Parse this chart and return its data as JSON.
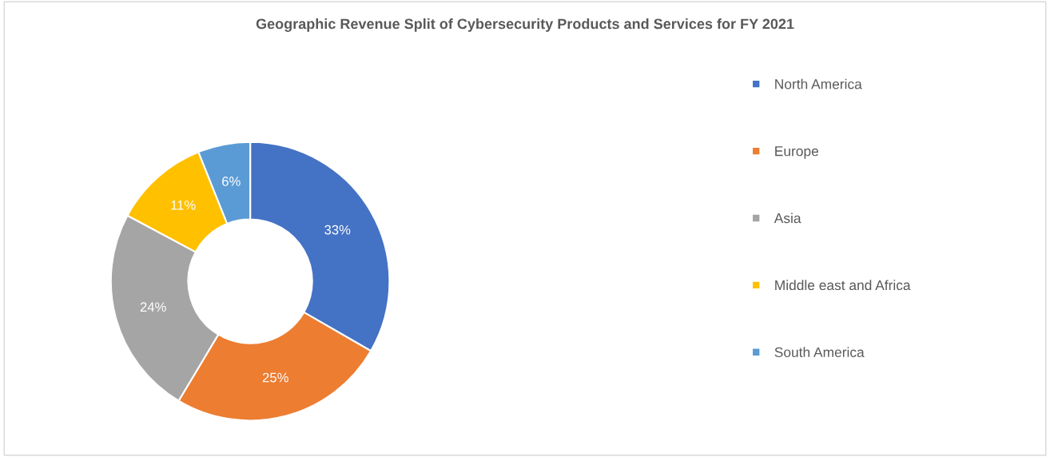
{
  "chart_data": {
    "type": "donut",
    "title": "Geographic Revenue Split of Cybersecurity Products and Services for FY 2021",
    "categories": [
      "North America",
      "Europe",
      "Asia",
      "Middle east and Africa",
      "South America"
    ],
    "values": [
      33,
      25,
      24,
      11,
      6
    ],
    "colors": [
      "#4472c4",
      "#ed7d31",
      "#a5a5a5",
      "#ffc000",
      "#5b9bd5"
    ],
    "value_labels": [
      "33%",
      "25%",
      "24%",
      "11%",
      "6%"
    ],
    "legend": "right"
  }
}
